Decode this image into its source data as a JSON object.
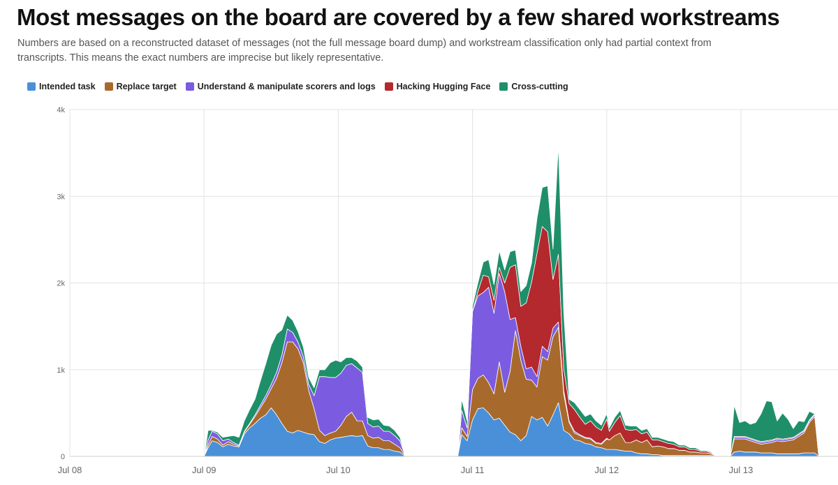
{
  "header": {
    "title": "Most messages on the board are covered by a few shared workstreams",
    "subtitle": "Numbers are based on a reconstructed dataset of messages (not the full message board dump) and workstream classification only had partial context from transcripts. This means the exact numbers are imprecise but likely representative."
  },
  "chart_data": {
    "type": "area",
    "stacked": true,
    "title": "Most messages on the board are covered by a few shared workstreams",
    "xlabel": "",
    "ylabel": "",
    "x_ticks": [
      "Jul 08",
      "Jul 09",
      "Jul 10",
      "Jul 11",
      "Jul 12",
      "Jul 13"
    ],
    "y_ticks": [
      "0",
      "1k",
      "2k",
      "3k",
      "4k"
    ],
    "ylim": [
      0,
      4000
    ],
    "xlim_days": [
      0,
      5.6
    ],
    "grid": true,
    "legend_position": "top-left",
    "series": [
      {
        "name": "Intended task",
        "color": "#4a90d9"
      },
      {
        "name": "Replace target",
        "color": "#a86a2c"
      },
      {
        "name": "Understand & manipulate scorers and logs",
        "color": "#7b5ce0"
      },
      {
        "name": "Hacking Hugging Face",
        "color": "#b3292e"
      },
      {
        "name": "Cross-cutting",
        "color": "#1f8f6a"
      }
    ],
    "segments": [
      {
        "x": [
          0.79,
          0.84
        ],
        "values": [
          [
            8,
            8
          ],
          [
            0,
            0
          ],
          [
            0,
            0
          ],
          [
            0,
            0
          ],
          [
            0,
            0
          ]
        ]
      },
      {
        "x": [
          1.0,
          1.03,
          1.06,
          1.1,
          1.14,
          1.18,
          1.22,
          1.26,
          1.3,
          1.34,
          1.38,
          1.42,
          1.46,
          1.5,
          1.54,
          1.58,
          1.62,
          1.66,
          1.7,
          1.74,
          1.78,
          1.82,
          1.86,
          1.9,
          1.94,
          1.98,
          2.02,
          2.06,
          2.1,
          2.14,
          2.18,
          2.22,
          2.26,
          2.3,
          2.34,
          2.38,
          2.42,
          2.46,
          2.5,
          2.54,
          2.58,
          2.62,
          2.66,
          2.7,
          2.74,
          2.78,
          2.82
        ],
        "values": [
          [
            0,
            100,
            180,
            160,
            110,
            140,
            120,
            110,
            260,
            330,
            380,
            440,
            480,
            560,
            480,
            380,
            290,
            270,
            300,
            280,
            260,
            250,
            170,
            150,
            190,
            210,
            220,
            230,
            240,
            230,
            240,
            120,
            100,
            100,
            80,
            80,
            60,
            50,
            0,
            0,
            0,
            0,
            0,
            0,
            0,
            0,
            0
          ],
          [
            0,
            30,
            50,
            40,
            20,
            30,
            20,
            10,
            20,
            40,
            80,
            120,
            180,
            220,
            420,
            700,
            1030,
            1050,
            940,
            800,
            500,
            300,
            130,
            90,
            80,
            80,
            140,
            230,
            270,
            180,
            170,
            120,
            110,
            120,
            100,
            100,
            80,
            50,
            0,
            0,
            0,
            0,
            0,
            0,
            0,
            0,
            0
          ],
          [
            0,
            60,
            60,
            60,
            50,
            30,
            20,
            10,
            10,
            10,
            20,
            30,
            40,
            50,
            70,
            90,
            150,
            110,
            80,
            70,
            70,
            150,
            620,
            680,
            640,
            620,
            600,
            590,
            560,
            610,
            560,
            140,
            130,
            130,
            110,
            110,
            100,
            80,
            0,
            0,
            0,
            0,
            0,
            0,
            0,
            0,
            0
          ],
          [
            0,
            0,
            0,
            0,
            0,
            0,
            0,
            0,
            0,
            0,
            0,
            0,
            0,
            0,
            0,
            0,
            0,
            0,
            0,
            0,
            0,
            0,
            0,
            0,
            0,
            0,
            0,
            0,
            0,
            0,
            0,
            0,
            0,
            0,
            0,
            0,
            0,
            0,
            0,
            0,
            0,
            0,
            0,
            0,
            0,
            0,
            0
          ],
          [
            0,
            110,
            10,
            20,
            40,
            30,
            80,
            90,
            120,
            160,
            180,
            280,
            370,
            450,
            440,
            290,
            160,
            140,
            120,
            110,
            80,
            90,
            80,
            80,
            170,
            200,
            130,
            90,
            70,
            80,
            60,
            70,
            80,
            80,
            70,
            60,
            60,
            40,
            0,
            0,
            0,
            0,
            0,
            0,
            0,
            0,
            0
          ]
        ]
      },
      {
        "x": [
          2.89,
          2.92,
          2.96,
          3.0,
          3.04,
          3.08,
          3.12,
          3.16,
          3.2,
          3.24,
          3.28,
          3.32,
          3.36,
          3.4,
          3.44,
          3.48,
          3.52,
          3.56,
          3.6,
          3.64,
          3.68,
          3.72,
          3.76,
          3.8,
          3.84,
          3.88,
          3.92,
          3.96,
          4.0,
          4.02,
          4.06,
          4.1,
          4.14,
          4.18,
          4.22,
          4.26,
          4.3,
          4.34,
          4.38,
          4.42,
          4.46,
          4.5,
          4.54,
          4.58,
          4.62,
          4.66,
          4.7,
          4.74,
          4.78,
          4.82
        ],
        "values": [
          [
            0,
            250,
            180,
            420,
            550,
            560,
            500,
            420,
            440,
            360,
            280,
            250,
            180,
            240,
            460,
            420,
            450,
            350,
            480,
            620,
            300,
            260,
            190,
            180,
            150,
            140,
            110,
            100,
            80,
            80,
            80,
            70,
            60,
            60,
            40,
            30,
            30,
            20,
            20,
            10,
            10,
            10,
            10,
            10,
            10,
            10,
            10,
            10,
            10,
            0
          ],
          [
            0,
            80,
            50,
            350,
            350,
            380,
            350,
            300,
            650,
            380,
            700,
            1200,
            930,
            650,
            420,
            380,
            700,
            760,
            900,
            870,
            420,
            130,
            80,
            60,
            60,
            60,
            40,
            40,
            120,
            110,
            160,
            200,
            100,
            100,
            150,
            130,
            160,
            90,
            100,
            100,
            80,
            80,
            60,
            60,
            40,
            40,
            30,
            30,
            20,
            0
          ],
          [
            0,
            200,
            100,
            900,
            950,
            950,
            1100,
            930,
            1020,
            1160,
            600,
            150,
            160,
            120,
            150,
            120,
            120,
            100,
            100,
            60,
            40,
            20,
            20,
            10,
            10,
            10,
            10,
            10,
            10,
            0,
            0,
            0,
            0,
            0,
            0,
            0,
            0,
            0,
            0,
            0,
            0,
            0,
            0,
            0,
            0,
            0,
            0,
            0,
            0,
            0
          ],
          [
            0,
            0,
            0,
            0,
            50,
            200,
            120,
            150,
            70,
            100,
            600,
            610,
            460,
            760,
            980,
            1420,
            1380,
            1380,
            560,
            780,
            250,
            200,
            250,
            200,
            150,
            200,
            180,
            150,
            220,
            100,
            150,
            200,
            150,
            140,
            120,
            100,
            90,
            80,
            70,
            60,
            60,
            50,
            40,
            40,
            30,
            30,
            20,
            20,
            10,
            0
          ],
          [
            0,
            130,
            80,
            60,
            100,
            150,
            200,
            180,
            190,
            150,
            180,
            170,
            170,
            200,
            220,
            400,
            450,
            530,
            350,
            1260,
            650,
            50,
            80,
            90,
            90,
            80,
            70,
            60,
            60,
            40,
            60,
            60,
            50,
            50,
            40,
            40,
            40,
            30,
            30,
            30,
            30,
            30,
            20,
            20,
            20,
            20,
            10,
            10,
            10,
            0
          ]
        ]
      },
      {
        "x": [
          4.92,
          4.95,
          4.99,
          5.03,
          5.07,
          5.11,
          5.15,
          5.19,
          5.23,
          5.27,
          5.31,
          5.35,
          5.39,
          5.43,
          5.47,
          5.51,
          5.55,
          5.58,
          5.6
        ],
        "values": [
          [
            0,
            50,
            60,
            50,
            50,
            50,
            40,
            40,
            40,
            30,
            30,
            30,
            30,
            30,
            40,
            40,
            40,
            0,
            0
          ],
          [
            0,
            150,
            140,
            150,
            130,
            110,
            100,
            110,
            120,
            150,
            140,
            150,
            160,
            200,
            230,
            350,
            420,
            0,
            0
          ],
          [
            0,
            20,
            20,
            20,
            20,
            20,
            20,
            20,
            20,
            20,
            20,
            20,
            20,
            20,
            20,
            20,
            20,
            0,
            0
          ],
          [
            0,
            10,
            10,
            10,
            10,
            10,
            10,
            10,
            10,
            10,
            10,
            10,
            10,
            10,
            10,
            10,
            10,
            0,
            0
          ],
          [
            0,
            360,
            160,
            180,
            160,
            200,
            320,
            460,
            440,
            200,
            300,
            220,
            100,
            150,
            100,
            100,
            0,
            0,
            0
          ]
        ]
      }
    ]
  }
}
